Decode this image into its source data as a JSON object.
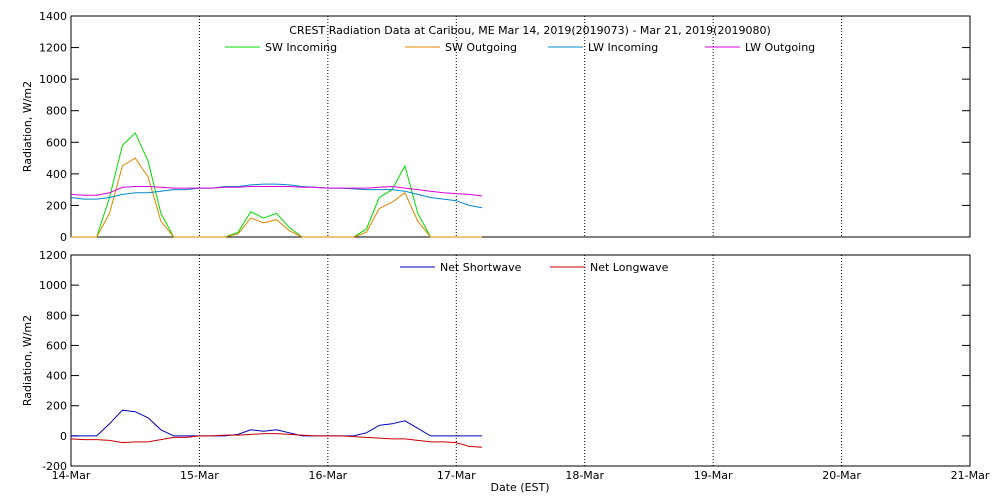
{
  "chart_data": [
    {
      "type": "line",
      "title": "CREST Radiation Data at Caribou, ME   Mar 14, 2019(2019073) - Mar 21, 2019(2019080)",
      "ylabel": "Radiation, W/m2",
      "x": [
        0,
        0.1,
        0.2,
        0.3,
        0.4,
        0.5,
        0.6,
        0.7,
        0.8,
        0.9,
        1.0,
        1.1,
        1.2,
        1.3,
        1.4,
        1.5,
        1.6,
        1.7,
        1.8,
        1.9,
        2.0,
        2.1,
        2.2,
        2.3,
        2.4,
        2.5,
        2.6,
        2.7,
        2.8,
        2.9,
        3.0,
        3.1,
        3.2
      ],
      "xlim": [
        0,
        7
      ],
      "xticks": [
        0,
        1,
        2,
        3,
        4,
        5,
        6,
        7
      ],
      "ylim": [
        0,
        1400
      ],
      "yticks": [
        0,
        200,
        400,
        600,
        800,
        1000,
        1200,
        1400
      ],
      "grid": true,
      "series": [
        {
          "name": "SW Incoming",
          "color": "#00dd00",
          "values": [
            0,
            0,
            0,
            250,
            580,
            660,
            480,
            150,
            0,
            0,
            0,
            0,
            0,
            30,
            160,
            120,
            150,
            60,
            0,
            0,
            0,
            0,
            0,
            50,
            250,
            300,
            450,
            150,
            0,
            0,
            0,
            0,
            0
          ]
        },
        {
          "name": "SW Outgoing",
          "color": "#dd8800",
          "values": [
            0,
            0,
            0,
            150,
            450,
            500,
            380,
            100,
            0,
            0,
            0,
            0,
            0,
            20,
            120,
            90,
            110,
            40,
            0,
            0,
            0,
            0,
            0,
            30,
            180,
            220,
            280,
            100,
            0,
            0,
            0,
            0,
            0
          ]
        },
        {
          "name": "LW Incoming",
          "color": "#0088cc",
          "values": [
            250,
            240,
            240,
            250,
            270,
            280,
            280,
            290,
            300,
            300,
            310,
            310,
            320,
            320,
            330,
            335,
            335,
            330,
            320,
            315,
            310,
            310,
            305,
            300,
            300,
            300,
            290,
            270,
            250,
            240,
            230,
            200,
            185
          ]
        },
        {
          "name": "LW Outgoing",
          "color": "#dd00dd",
          "values": [
            270,
            265,
            265,
            280,
            315,
            320,
            320,
            315,
            310,
            310,
            310,
            310,
            315,
            315,
            320,
            320,
            320,
            320,
            315,
            315,
            310,
            310,
            310,
            310,
            315,
            320,
            310,
            300,
            290,
            280,
            275,
            270,
            260
          ]
        }
      ]
    },
    {
      "type": "line",
      "ylabel": "Radiation, W/m2",
      "xlabel": "Date (EST)",
      "x": [
        0,
        0.1,
        0.2,
        0.3,
        0.4,
        0.5,
        0.6,
        0.7,
        0.8,
        0.9,
        1.0,
        1.1,
        1.2,
        1.3,
        1.4,
        1.5,
        1.6,
        1.7,
        1.8,
        1.9,
        2.0,
        2.1,
        2.2,
        2.3,
        2.4,
        2.5,
        2.6,
        2.7,
        2.8,
        2.9,
        3.0,
        3.1,
        3.2
      ],
      "xlim": [
        0,
        7
      ],
      "xticks": [
        {
          "value": 0,
          "label": "14-Mar"
        },
        {
          "value": 1,
          "label": "15-Mar"
        },
        {
          "value": 2,
          "label": "16-Mar"
        },
        {
          "value": 3,
          "label": "17-Mar"
        },
        {
          "value": 4,
          "label": "18-Mar"
        },
        {
          "value": 5,
          "label": "19-Mar"
        },
        {
          "value": 6,
          "label": "20-Mar"
        },
        {
          "value": 7,
          "label": "21-Mar"
        }
      ],
      "ylim": [
        -200,
        1200
      ],
      "yticks": [
        -200,
        0,
        200,
        400,
        600,
        800,
        1000,
        1200
      ],
      "grid": true,
      "series": [
        {
          "name": "Net Shortwave",
          "color": "#0000bb",
          "values": [
            0,
            0,
            0,
            80,
            170,
            160,
            120,
            40,
            0,
            0,
            0,
            0,
            0,
            10,
            40,
            30,
            40,
            20,
            0,
            0,
            0,
            0,
            0,
            20,
            70,
            80,
            100,
            50,
            0,
            0,
            0,
            0,
            0
          ]
        },
        {
          "name": "Net Longwave",
          "color": "#cc0000",
          "values": [
            -20,
            -25,
            -25,
            -30,
            -45,
            -40,
            -40,
            -25,
            -10,
            -10,
            0,
            0,
            5,
            5,
            10,
            15,
            15,
            10,
            5,
            0,
            0,
            0,
            -5,
            -10,
            -15,
            -20,
            -20,
            -30,
            -40,
            -40,
            -45,
            -70,
            -75
          ]
        }
      ]
    }
  ]
}
